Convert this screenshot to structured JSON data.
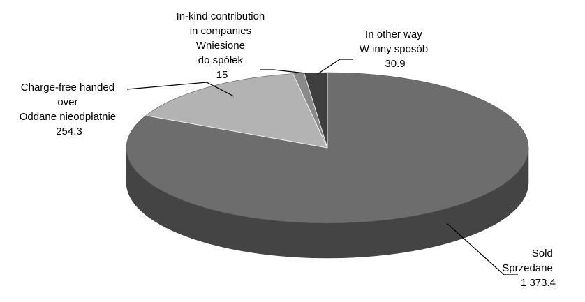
{
  "chart_data": {
    "type": "pie",
    "style": "3d",
    "title": "",
    "slices": [
      {
        "key": "sold",
        "lines": [
          "Sold",
          "Sprzedane",
          "1 373.4"
        ],
        "value": 1373.4,
        "color": "#6d6d6d"
      },
      {
        "key": "charge_free",
        "lines": [
          "Charge-free handed",
          "over",
          "Oddane nieodpłatnie",
          "254.3"
        ],
        "value": 254.3,
        "color": "#b3b3b3"
      },
      {
        "key": "in_kind",
        "lines": [
          "In-kind contribution",
          "in companies",
          "Wniesione",
          "do spółek",
          "15"
        ],
        "value": 15,
        "color": "#8a8a8a"
      },
      {
        "key": "other",
        "lines": [
          "In other way",
          "W inny sposób",
          "30.9"
        ],
        "value": 30.9,
        "color": "#3f3f3f"
      }
    ]
  }
}
